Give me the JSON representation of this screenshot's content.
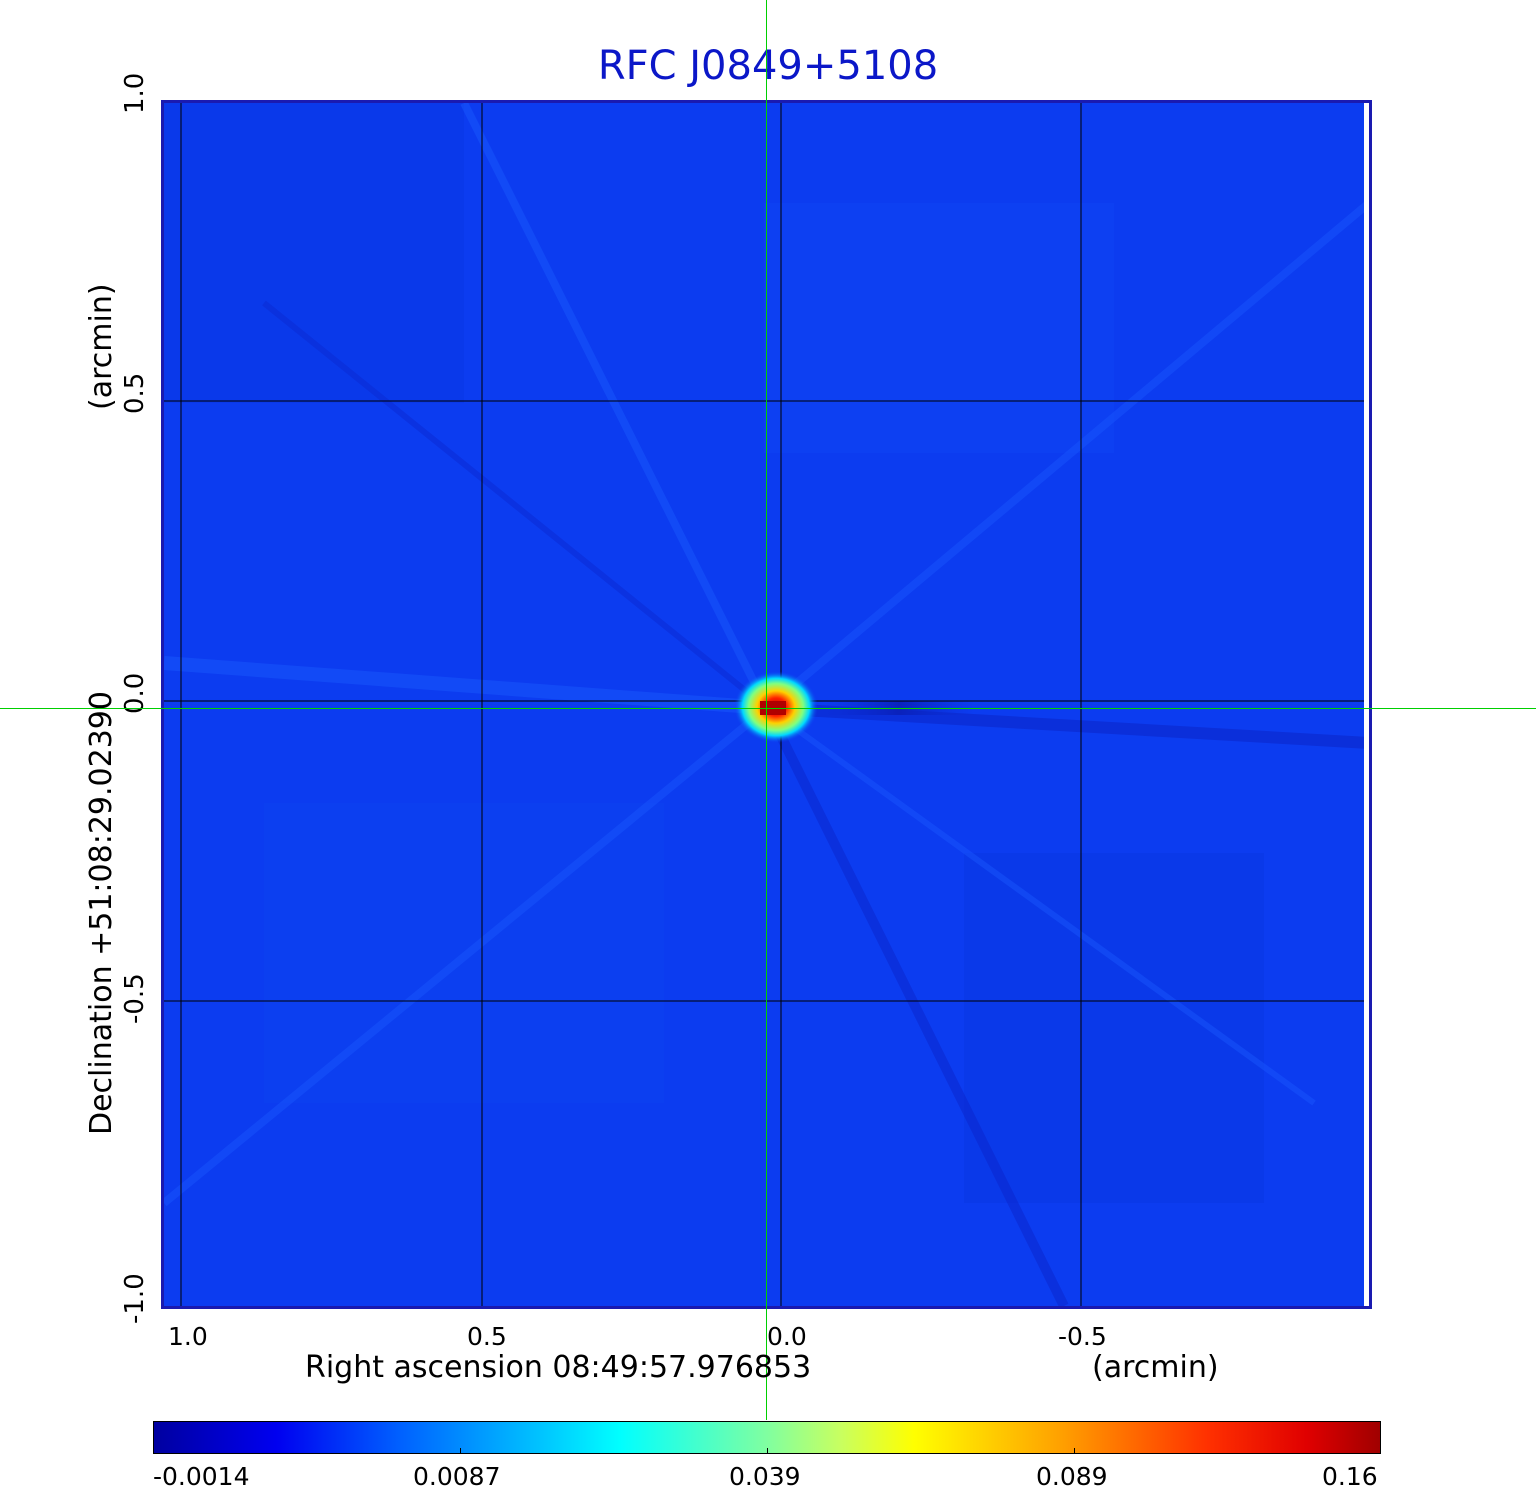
{
  "title": "RFC J0849+5108",
  "x_axis": {
    "label": "Right ascension  08:49:57.976853",
    "unit": "(arcmin)",
    "ticks": [
      "1.0",
      "0.5",
      "0.0",
      "-0.5"
    ]
  },
  "y_axis": {
    "label": "Declination  +51:08:29.02390",
    "unit": "(arcmin)",
    "ticks": [
      "1.0",
      "0.5",
      "0.0",
      "-0.5",
      "-1.0"
    ]
  },
  "colorbar": {
    "ticks": [
      "-0.0014",
      "0.0087",
      "0.039",
      "0.089",
      "0.16"
    ],
    "colormap": "jet"
  },
  "colors": {
    "title": "#0b17c8",
    "frame": "#1a1ab0",
    "background_field": "#0c3cf0",
    "crosshair": "#00d000",
    "grid": "#000000"
  }
}
